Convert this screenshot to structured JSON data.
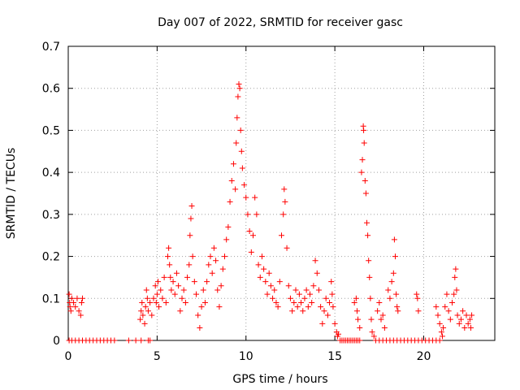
{
  "chart_data": {
    "type": "scatter",
    "title": "Day 007 of 2022, SRMTID for receiver gasc",
    "xlabel": "GPS time / hours",
    "ylabel": "SRMTID / TECUs",
    "xlim": [
      0,
      24
    ],
    "ylim": [
      0,
      0.7
    ],
    "xticks": [
      0,
      5,
      10,
      15,
      20
    ],
    "xtick_labels": [
      "0",
      "5",
      "10",
      "15",
      "20"
    ],
    "yticks": [
      0,
      0.1,
      0.2,
      0.3,
      0.4,
      0.5,
      0.6,
      0.7
    ],
    "ytick_labels": [
      "0",
      "0.1",
      "0.2",
      "0.3",
      "0.4",
      "0.5",
      "0.6",
      "0.7"
    ],
    "grid": true,
    "marker": "+",
    "marker_color": "#ff0000",
    "series": [
      {
        "name": "SRMTID",
        "points": [
          [
            0.05,
            0.11
          ],
          [
            0.08,
            0.09
          ],
          [
            0.1,
            0.08
          ],
          [
            0.15,
            0.07
          ],
          [
            0.2,
            0.1
          ],
          [
            0.3,
            0.09
          ],
          [
            0.4,
            0.08
          ],
          [
            0.5,
            0.1
          ],
          [
            0.6,
            0.07
          ],
          [
            0.7,
            0.06
          ],
          [
            0.75,
            0.09
          ],
          [
            0.8,
            0.1
          ],
          [
            0.05,
            0
          ],
          [
            0.2,
            0
          ],
          [
            0.4,
            0
          ],
          [
            0.6,
            0
          ],
          [
            0.8,
            0
          ],
          [
            1.0,
            0
          ],
          [
            1.2,
            0
          ],
          [
            1.4,
            0
          ],
          [
            1.6,
            0
          ],
          [
            1.8,
            0
          ],
          [
            2.0,
            0
          ],
          [
            2.2,
            0
          ],
          [
            2.4,
            0
          ],
          [
            2.6,
            0
          ],
          [
            3.4,
            0
          ],
          [
            3.8,
            0
          ],
          [
            4.1,
            0
          ],
          [
            4.5,
            0
          ],
          [
            4.6,
            0
          ],
          [
            4.05,
            0.05
          ],
          [
            4.1,
            0.07
          ],
          [
            4.15,
            0.09
          ],
          [
            4.2,
            0.06
          ],
          [
            4.3,
            0.04
          ],
          [
            4.35,
            0.08
          ],
          [
            4.4,
            0.12
          ],
          [
            4.45,
            0.1
          ],
          [
            4.5,
            0.07
          ],
          [
            4.6,
            0.09
          ],
          [
            4.7,
            0.06
          ],
          [
            4.8,
            0.1
          ],
          [
            4.9,
            0.13
          ],
          [
            4.95,
            0.09
          ],
          [
            5.0,
            0.11
          ],
          [
            5.05,
            0.14
          ],
          [
            5.1,
            0.08
          ],
          [
            5.2,
            0.12
          ],
          [
            5.3,
            0.1
          ],
          [
            5.4,
            0.15
          ],
          [
            5.5,
            0.09
          ],
          [
            5.6,
            0.2
          ],
          [
            5.65,
            0.22
          ],
          [
            5.7,
            0.18
          ],
          [
            5.75,
            0.15
          ],
          [
            5.8,
            0.12
          ],
          [
            5.9,
            0.14
          ],
          [
            6.0,
            0.11
          ],
          [
            6.1,
            0.16
          ],
          [
            6.2,
            0.13
          ],
          [
            6.3,
            0.07
          ],
          [
            6.4,
            0.1
          ],
          [
            6.5,
            0.12
          ],
          [
            6.6,
            0.09
          ],
          [
            6.7,
            0.15
          ],
          [
            6.8,
            0.18
          ],
          [
            6.85,
            0.25
          ],
          [
            6.9,
            0.29
          ],
          [
            6.95,
            0.32
          ],
          [
            7.0,
            0.2
          ],
          [
            7.1,
            0.14
          ],
          [
            7.2,
            0.11
          ],
          [
            7.3,
            0.06
          ],
          [
            7.4,
            0.03
          ],
          [
            7.5,
            0.08
          ],
          [
            7.6,
            0.12
          ],
          [
            7.7,
            0.09
          ],
          [
            7.8,
            0.14
          ],
          [
            7.9,
            0.18
          ],
          [
            8.0,
            0.2
          ],
          [
            8.1,
            0.16
          ],
          [
            8.2,
            0.22
          ],
          [
            8.3,
            0.19
          ],
          [
            8.4,
            0.12
          ],
          [
            8.5,
            0.08
          ],
          [
            8.6,
            0.13
          ],
          [
            8.7,
            0.17
          ],
          [
            8.8,
            0.2
          ],
          [
            8.9,
            0.24
          ],
          [
            9.0,
            0.27
          ],
          [
            9.1,
            0.33
          ],
          [
            9.2,
            0.38
          ],
          [
            9.3,
            0.42
          ],
          [
            9.4,
            0.36
          ],
          [
            9.45,
            0.47
          ],
          [
            9.5,
            0.53
          ],
          [
            9.55,
            0.58
          ],
          [
            9.6,
            0.61
          ],
          [
            9.65,
            0.6
          ],
          [
            9.7,
            0.5
          ],
          [
            9.75,
            0.45
          ],
          [
            9.8,
            0.41
          ],
          [
            9.9,
            0.37
          ],
          [
            10.0,
            0.34
          ],
          [
            10.1,
            0.3
          ],
          [
            10.2,
            0.26
          ],
          [
            10.3,
            0.21
          ],
          [
            10.4,
            0.25
          ],
          [
            10.5,
            0.34
          ],
          [
            10.6,
            0.3
          ],
          [
            10.7,
            0.18
          ],
          [
            10.8,
            0.15
          ],
          [
            10.9,
            0.2
          ],
          [
            11.0,
            0.17
          ],
          [
            11.1,
            0.14
          ],
          [
            11.2,
            0.11
          ],
          [
            11.3,
            0.16
          ],
          [
            11.4,
            0.13
          ],
          [
            11.5,
            0.1
          ],
          [
            11.6,
            0.12
          ],
          [
            11.7,
            0.09
          ],
          [
            11.8,
            0.08
          ],
          [
            11.9,
            0.14
          ],
          [
            12.0,
            0.25
          ],
          [
            12.1,
            0.3
          ],
          [
            12.15,
            0.36
          ],
          [
            12.2,
            0.33
          ],
          [
            12.3,
            0.22
          ],
          [
            12.4,
            0.13
          ],
          [
            12.5,
            0.1
          ],
          [
            12.6,
            0.07
          ],
          [
            12.7,
            0.09
          ],
          [
            12.8,
            0.12
          ],
          [
            12.9,
            0.08
          ],
          [
            13.0,
            0.11
          ],
          [
            13.1,
            0.09
          ],
          [
            13.2,
            0.07
          ],
          [
            13.3,
            0.1
          ],
          [
            13.4,
            0.12
          ],
          [
            13.5,
            0.08
          ],
          [
            13.6,
            0.11
          ],
          [
            13.7,
            0.09
          ],
          [
            13.8,
            0.13
          ],
          [
            13.9,
            0.19
          ],
          [
            14.0,
            0.16
          ],
          [
            14.1,
            0.12
          ],
          [
            14.2,
            0.08
          ],
          [
            14.3,
            0.04
          ],
          [
            14.4,
            0.07
          ],
          [
            14.5,
            0.1
          ],
          [
            14.6,
            0.06
          ],
          [
            14.7,
            0.09
          ],
          [
            14.8,
            0.14
          ],
          [
            14.85,
            0.11
          ],
          [
            14.9,
            0.08
          ],
          [
            15.0,
            0.04
          ],
          [
            15.1,
            0.02
          ],
          [
            15.15,
            0.01
          ],
          [
            15.2,
            0.015
          ],
          [
            15.3,
            0
          ],
          [
            15.4,
            0
          ],
          [
            15.5,
            0
          ],
          [
            15.6,
            0
          ],
          [
            15.7,
            0
          ],
          [
            15.8,
            0
          ],
          [
            15.9,
            0
          ],
          [
            16.0,
            0
          ],
          [
            16.1,
            0
          ],
          [
            16.2,
            0
          ],
          [
            16.3,
            0
          ],
          [
            16.4,
            0
          ],
          [
            16.1,
            0.09
          ],
          [
            16.2,
            0.1
          ],
          [
            16.25,
            0.07
          ],
          [
            16.3,
            0.05
          ],
          [
            16.4,
            0.03
          ],
          [
            16.5,
            0.4
          ],
          [
            16.55,
            0.43
          ],
          [
            16.6,
            0.51
          ],
          [
            16.62,
            0.5
          ],
          [
            16.65,
            0.47
          ],
          [
            16.7,
            0.38
          ],
          [
            16.75,
            0.35
          ],
          [
            16.8,
            0.28
          ],
          [
            16.85,
            0.25
          ],
          [
            16.9,
            0.19
          ],
          [
            16.95,
            0.15
          ],
          [
            17.0,
            0.1
          ],
          [
            17.05,
            0.05
          ],
          [
            17.1,
            0.02
          ],
          [
            17.2,
            0.01
          ],
          [
            17.4,
            0.07
          ],
          [
            17.5,
            0.09
          ],
          [
            17.6,
            0.05
          ],
          [
            17.7,
            0.06
          ],
          [
            17.8,
            0.03
          ],
          [
            17.3,
            0
          ],
          [
            17.5,
            0
          ],
          [
            17.7,
            0
          ],
          [
            17.9,
            0
          ],
          [
            18.1,
            0
          ],
          [
            18.3,
            0
          ],
          [
            18.5,
            0
          ],
          [
            18.7,
            0
          ],
          [
            18.9,
            0
          ],
          [
            19.1,
            0
          ],
          [
            19.3,
            0
          ],
          [
            19.5,
            0
          ],
          [
            19.7,
            0
          ],
          [
            19.9,
            0
          ],
          [
            20.1,
            0
          ],
          [
            20.3,
            0
          ],
          [
            20.5,
            0
          ],
          [
            20.7,
            0
          ],
          [
            20.9,
            0
          ],
          [
            18.0,
            0.12
          ],
          [
            18.1,
            0.1
          ],
          [
            18.2,
            0.14
          ],
          [
            18.3,
            0.16
          ],
          [
            18.35,
            0.24
          ],
          [
            18.4,
            0.2
          ],
          [
            18.45,
            0.11
          ],
          [
            18.5,
            0.08
          ],
          [
            18.55,
            0.07
          ],
          [
            19.6,
            0.11
          ],
          [
            19.65,
            0.1
          ],
          [
            19.7,
            0.07
          ],
          [
            20.7,
            0.08
          ],
          [
            20.8,
            0.06
          ],
          [
            20.9,
            0.04
          ],
          [
            21.0,
            0.02
          ],
          [
            21.05,
            0.01
          ],
          [
            21.1,
            0.03
          ],
          [
            21.2,
            0.08
          ],
          [
            21.3,
            0.11
          ],
          [
            21.4,
            0.07
          ],
          [
            21.5,
            0.05
          ],
          [
            21.6,
            0.09
          ],
          [
            21.7,
            0.11
          ],
          [
            21.75,
            0.15
          ],
          [
            21.8,
            0.17
          ],
          [
            21.85,
            0.12
          ],
          [
            21.9,
            0.06
          ],
          [
            22.0,
            0.04
          ],
          [
            22.1,
            0.05
          ],
          [
            22.2,
            0.07
          ],
          [
            22.3,
            0.03
          ],
          [
            22.4,
            0.06
          ],
          [
            22.5,
            0.04
          ],
          [
            22.6,
            0.05
          ],
          [
            22.65,
            0.03
          ],
          [
            22.7,
            0.06
          ]
        ]
      }
    ]
  }
}
